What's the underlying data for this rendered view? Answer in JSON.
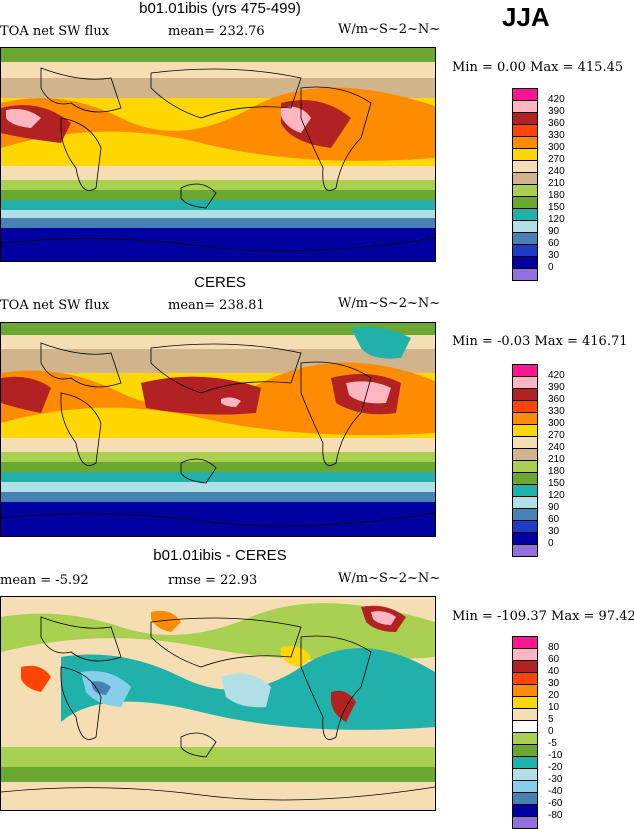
{
  "season": "JJA",
  "panels": [
    {
      "title": "b01.01ibis (yrs 475-499)",
      "left_label": "TOA net SW flux",
      "stat_label": "mean= 232.76",
      "units": "W/m~S~2~N~",
      "min_max": "Min =   0.00 Max = 415.45",
      "levels": [
        "420",
        "390",
        "360",
        "330",
        "300",
        "270",
        "240",
        "210",
        "180",
        "150",
        "120",
        "90",
        "60",
        "30",
        "0"
      ],
      "colors": [
        "#ff1493",
        "#ffb6c1",
        "#b22222",
        "#ff4500",
        "#ff8c00",
        "#ffd700",
        "#f5deb3",
        "#d2b48c",
        "#a9d050",
        "#6aa832",
        "#20b2aa",
        "#b0e0e6",
        "#4682b4",
        "#1e3cc8",
        "#0000a0",
        "#9370db"
      ]
    },
    {
      "title": "CERES",
      "left_label": "TOA net SW flux",
      "stat_label": "mean= 238.81",
      "units": "W/m~S~2~N~",
      "min_max": "Min =  -0.03 Max = 416.71",
      "levels": [
        "420",
        "390",
        "360",
        "330",
        "300",
        "270",
        "240",
        "210",
        "180",
        "150",
        "120",
        "90",
        "60",
        "30",
        "0"
      ],
      "colors": [
        "#ff1493",
        "#ffb6c1",
        "#b22222",
        "#ff4500",
        "#ff8c00",
        "#ffd700",
        "#f5deb3",
        "#d2b48c",
        "#a9d050",
        "#6aa832",
        "#20b2aa",
        "#b0e0e6",
        "#4682b4",
        "#1e3cc8",
        "#0000a0",
        "#9370db"
      ]
    },
    {
      "title": "b01.01ibis - CERES",
      "left_label": "mean =  -5.92",
      "stat_label": "rmse =  22.93",
      "units": "W/m~S~2~N~",
      "min_max": "Min = -109.37 Max =  97.42",
      "levels": [
        "80",
        "60",
        "40",
        "30",
        "20",
        "10",
        "5",
        "0",
        "-5",
        "-10",
        "-20",
        "-30",
        "-40",
        "-60",
        "-80"
      ],
      "colors": [
        "#ff1493",
        "#ffb6c1",
        "#b22222",
        "#ff4500",
        "#ff8c00",
        "#ffd700",
        "#f5deb3",
        "#ffffff",
        "#a9d050",
        "#6aa832",
        "#20b2aa",
        "#b0e0e6",
        "#87ceeb",
        "#4682b4",
        "#0000a0",
        "#9370db"
      ]
    }
  ],
  "chart_data": [
    {
      "type": "heatmap",
      "title": "b01.01ibis (yrs 475-499)",
      "variable": "TOA net SW flux",
      "units": "W/m~S~2~N~",
      "mean": 232.76,
      "min": 0.0,
      "max": 415.45,
      "contour_levels": [
        0,
        30,
        60,
        90,
        120,
        150,
        180,
        210,
        240,
        270,
        300,
        330,
        360,
        390,
        420
      ]
    },
    {
      "type": "heatmap",
      "title": "CERES",
      "variable": "TOA net SW flux",
      "units": "W/m~S~2~N~",
      "mean": 238.81,
      "min": -0.03,
      "max": 416.71,
      "contour_levels": [
        0,
        30,
        60,
        90,
        120,
        150,
        180,
        210,
        240,
        270,
        300,
        330,
        360,
        390,
        420
      ]
    },
    {
      "type": "heatmap",
      "title": "b01.01ibis - CERES",
      "units": "W/m~S~2~N~",
      "mean": -5.92,
      "rmse": 22.93,
      "min": -109.37,
      "max": 97.42,
      "contour_levels": [
        -80,
        -60,
        -40,
        -30,
        -20,
        -10,
        -5,
        0,
        5,
        10,
        20,
        30,
        40,
        60,
        80
      ]
    }
  ]
}
